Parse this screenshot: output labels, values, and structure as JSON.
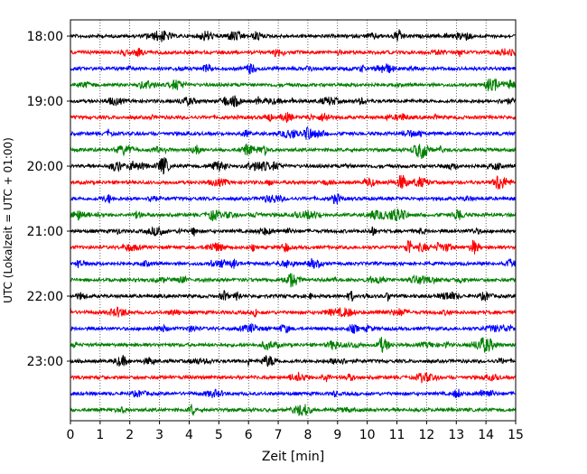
{
  "chart_data": {
    "type": "line",
    "xlabel": "Zeit  [min]",
    "ylabel": "UTC (Lokalzeit = UTC + 01:00)",
    "xlim": [
      0,
      15
    ],
    "x_ticks": [
      "0",
      "1",
      "2",
      "3",
      "4",
      "5",
      "6",
      "7",
      "8",
      "9",
      "10",
      "11",
      "12",
      "13",
      "14",
      "15"
    ],
    "y_tick_labels": [
      "18:00",
      "19:00",
      "20:00",
      "21:00",
      "22:00",
      "23:00"
    ],
    "rows_per_hour": 4,
    "row_colors": [
      "#000000",
      "#ff0000",
      "#0000ff",
      "#008000"
    ],
    "rows": [
      {
        "start": "18:00",
        "color": "#000000"
      },
      {
        "start": "18:15",
        "color": "#ff0000"
      },
      {
        "start": "18:30",
        "color": "#0000ff"
      },
      {
        "start": "18:45",
        "color": "#008000"
      },
      {
        "start": "19:00",
        "color": "#000000"
      },
      {
        "start": "19:15",
        "color": "#ff0000"
      },
      {
        "start": "19:30",
        "color": "#0000ff"
      },
      {
        "start": "19:45",
        "color": "#008000"
      },
      {
        "start": "20:00",
        "color": "#000000"
      },
      {
        "start": "20:15",
        "color": "#ff0000"
      },
      {
        "start": "20:30",
        "color": "#0000ff"
      },
      {
        "start": "20:45",
        "color": "#008000"
      },
      {
        "start": "21:00",
        "color": "#000000"
      },
      {
        "start": "21:15",
        "color": "#ff0000"
      },
      {
        "start": "21:30",
        "color": "#0000ff"
      },
      {
        "start": "21:45",
        "color": "#008000"
      },
      {
        "start": "22:00",
        "color": "#000000"
      },
      {
        "start": "22:15",
        "color": "#ff0000"
      },
      {
        "start": "22:30",
        "color": "#0000ff"
      },
      {
        "start": "22:45",
        "color": "#008000"
      },
      {
        "start": "23:00",
        "color": "#000000"
      },
      {
        "start": "23:15",
        "color": "#ff0000"
      },
      {
        "start": "23:30",
        "color": "#0000ff"
      },
      {
        "start": "23:45",
        "color": "#008000"
      }
    ],
    "vertical_gridlines": "dotted",
    "legend": "none"
  }
}
